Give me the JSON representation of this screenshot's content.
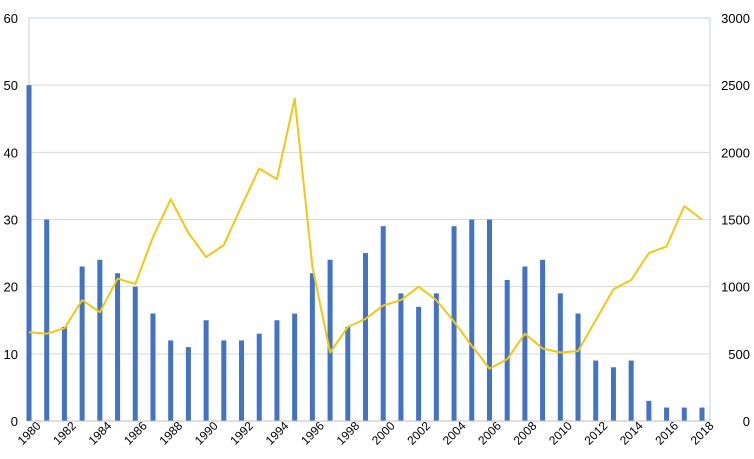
{
  "chart_data": {
    "type": "bar+line",
    "x": [
      1980,
      1981,
      1982,
      1983,
      1984,
      1985,
      1986,
      1987,
      1988,
      1989,
      1990,
      1991,
      1992,
      1993,
      1994,
      1995,
      1996,
      1997,
      1998,
      1999,
      2000,
      2001,
      2002,
      2003,
      2004,
      2005,
      2006,
      2007,
      2008,
      2009,
      2010,
      2011,
      2012,
      2013,
      2014,
      2015,
      2016,
      2017,
      2018
    ],
    "x_tick_labels": [
      "1980",
      "1982",
      "1984",
      "1986",
      "1988",
      "1990",
      "1992",
      "1994",
      "1996",
      "1998",
      "2000",
      "2002",
      "2004",
      "2006",
      "2008",
      "2010",
      "2012",
      "2014",
      "2016",
      "2018"
    ],
    "series": [
      {
        "type": "bar",
        "axis": "left",
        "color": "#4472C4",
        "values": [
          50,
          30,
          14,
          23,
          24,
          22,
          20,
          16,
          12,
          11,
          15,
          12,
          12,
          13,
          15,
          16,
          22,
          24,
          14,
          25,
          29,
          19,
          17,
          19,
          29,
          30,
          30,
          21,
          23,
          24,
          19,
          16,
          9,
          8,
          9,
          3,
          2,
          2,
          2
        ]
      },
      {
        "type": "line",
        "axis": "right",
        "color": "#F2C811",
        "values": [
          660,
          650,
          690,
          900,
          810,
          1060,
          1020,
          1370,
          1650,
          1400,
          1220,
          1310,
          1600,
          1880,
          1800,
          2400,
          1150,
          510,
          700,
          760,
          860,
          900,
          1000,
          900,
          740,
          560,
          390,
          460,
          650,
          540,
          510,
          520,
          750,
          980,
          1050,
          1250,
          1300,
          1600,
          1500
        ]
      }
    ],
    "left_axis": {
      "ylim": [
        0,
        60
      ],
      "ticks": [
        0,
        10,
        20,
        30,
        40,
        50,
        60
      ]
    },
    "right_axis": {
      "ylim": [
        0,
        3000
      ],
      "ticks": [
        0,
        500,
        1000,
        1500,
        2000,
        2500,
        3000
      ]
    },
    "grid": true,
    "legend": "none"
  }
}
